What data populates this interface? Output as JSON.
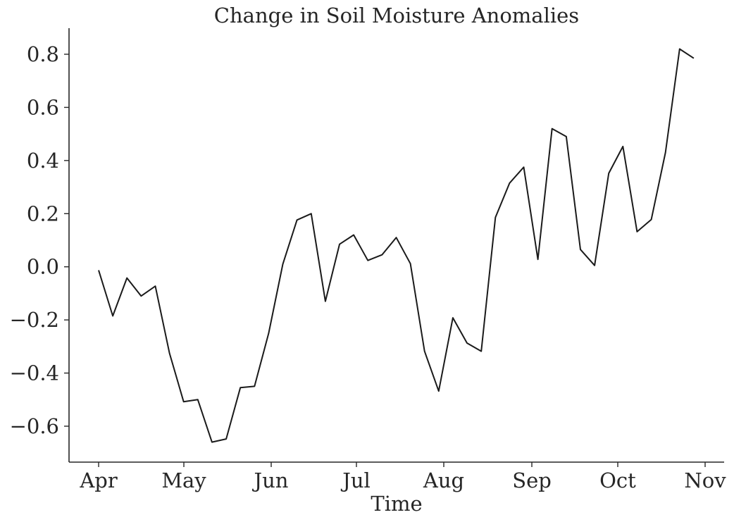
{
  "chart_data": {
    "type": "line",
    "title": "Change in Soil Moisture Anomalies",
    "xlabel": "Time",
    "ylabel": "",
    "x_ticks": [
      "Apr",
      "May",
      "Jun",
      "Jul",
      "Aug",
      "Sep",
      "Oct",
      "Nov"
    ],
    "ylim": [
      -0.73,
      0.9
    ],
    "yticks": [
      -0.6,
      -0.4,
      -0.2,
      0.0,
      0.2,
      0.4,
      0.6,
      0.8
    ],
    "ytick_labels": [
      "−0.6",
      "−0.4",
      "−0.2",
      "0.0",
      "0.2",
      "0.4",
      "0.6",
      "0.8"
    ],
    "grid": false,
    "legend": "none",
    "colors": {
      "line": "#1a1a1a",
      "axis": "#262626"
    },
    "series": [
      {
        "x": [
          "Apr 1",
          "Apr 6",
          "Apr 11",
          "Apr 16",
          "Apr 21",
          "Apr 26",
          "May 1",
          "May 6",
          "May 11",
          "May 16",
          "May 21",
          "May 26",
          "May 31",
          "Jun 5",
          "Jun 10",
          "Jun 15",
          "Jun 20",
          "Jun 25",
          "Jun 30",
          "Jul 5",
          "Jul 10",
          "Jul 15",
          "Jul 20",
          "Jul 25",
          "Jul 30",
          "Aug 4",
          "Aug 9",
          "Aug 14",
          "Aug 19",
          "Aug 24",
          "Aug 29",
          "Sep 3",
          "Sep 8",
          "Sep 13",
          "Sep 18",
          "Sep 23",
          "Sep 28",
          "Oct 3",
          "Oct 8",
          "Oct 13",
          "Oct 18",
          "Oct 23",
          "Oct 28"
        ],
        "values": [
          -0.013,
          -0.185,
          -0.042,
          -0.11,
          -0.073,
          -0.325,
          -0.508,
          -0.5,
          -0.66,
          -0.648,
          -0.455,
          -0.45,
          -0.25,
          0.01,
          0.176,
          0.2,
          -0.13,
          0.085,
          0.12,
          0.024,
          0.045,
          0.11,
          0.012,
          -0.318,
          -0.468,
          -0.192,
          -0.287,
          -0.318,
          0.186,
          0.315,
          0.375,
          0.028,
          0.52,
          0.49,
          0.065,
          0.005,
          0.352,
          0.453,
          0.132,
          0.178,
          0.43,
          0.82,
          0.785
        ]
      }
    ]
  }
}
